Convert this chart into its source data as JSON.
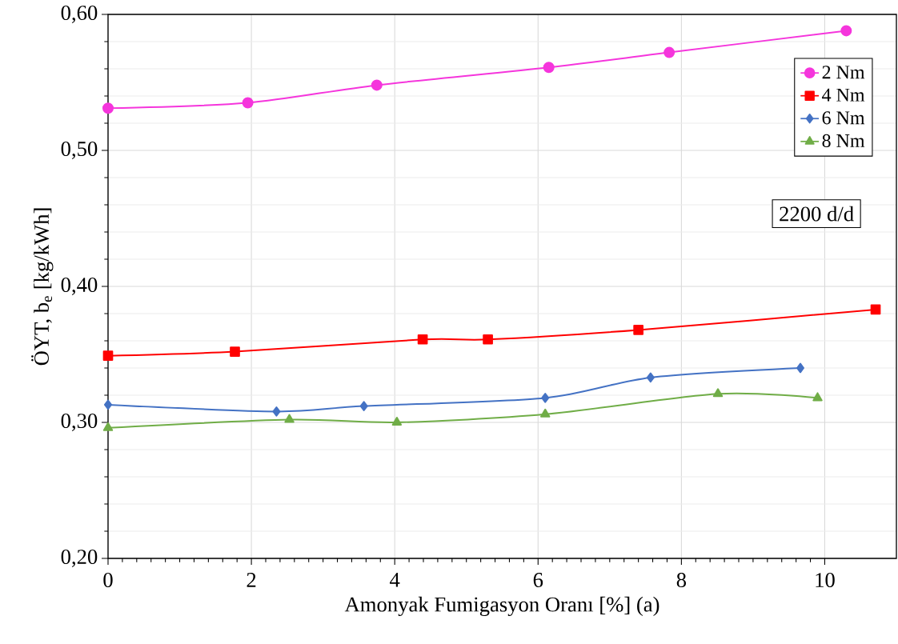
{
  "chart_data": {
    "type": "line",
    "xlabel": "Amonyak Fumigasyon Oranı [%]  (a)",
    "ylabel": "ÖYT, b$_{e}$ [kg/kWh]",
    "xlim": [
      0,
      11
    ],
    "xticks": [
      0,
      2,
      4,
      6,
      8,
      10
    ],
    "ylim": [
      0.2,
      0.6
    ],
    "yticks": [
      {
        "value": 0.2,
        "label": "0,20"
      },
      {
        "value": 0.3,
        "label": "0,30"
      },
      {
        "value": 0.4,
        "label": "0,40"
      },
      {
        "value": 0.5,
        "label": "0,50"
      },
      {
        "value": 0.6,
        "label": "0,60"
      }
    ],
    "grid": true,
    "legend": "top right",
    "line_style": "solid",
    "annotations": [
      "2200 d/d"
    ],
    "series": [
      {
        "name": "2 Nm",
        "color": "#f535dc",
        "marker": "circle",
        "x": [
          0,
          1.95,
          3.75,
          6.15,
          7.83,
          10.3
        ],
        "values": [
          0.531,
          0.535,
          0.548,
          0.561,
          0.572,
          0.588
        ]
      },
      {
        "name": "4 Nm",
        "color": "#ff0000",
        "marker": "square",
        "x": [
          0,
          1.77,
          4.39,
          5.3,
          7.4,
          10.71
        ],
        "values": [
          0.349,
          0.352,
          0.361,
          0.361,
          0.368,
          0.383
        ]
      },
      {
        "name": "6 Nm",
        "color": "#4472c4",
        "marker": "diamond",
        "x": [
          0,
          2.35,
          3.57,
          6.1,
          7.57,
          9.66
        ],
        "values": [
          0.313,
          0.308,
          0.312,
          0.318,
          0.333,
          0.34
        ]
      },
      {
        "name": "8 Nm",
        "color": "#70ad47",
        "marker": "triangle",
        "x": [
          0,
          2.53,
          4.03,
          6.1,
          8.51,
          9.9
        ],
        "values": [
          0.296,
          0.302,
          0.3,
          0.306,
          0.321,
          0.318
        ]
      }
    ]
  }
}
